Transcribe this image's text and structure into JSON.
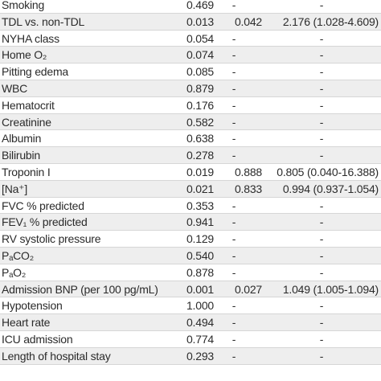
{
  "rows": [
    {
      "variable": "Smoking",
      "univariate_p": "0.469",
      "multivariate_p": "-",
      "or_ci": "-"
    },
    {
      "variable": "TDL vs. non-TDL",
      "univariate_p": "0.013",
      "multivariate_p": "0.042",
      "or_ci": "2.176 (1.028-4.609)"
    },
    {
      "variable": "NYHA class",
      "univariate_p": "0.054",
      "multivariate_p": "-",
      "or_ci": "-"
    },
    {
      "variable": "Home O₂",
      "univariate_p": "0.074",
      "multivariate_p": "-",
      "or_ci": "-"
    },
    {
      "variable": "Pitting edema",
      "univariate_p": "0.085",
      "multivariate_p": "-",
      "or_ci": "-"
    },
    {
      "variable": "WBC",
      "univariate_p": "0.879",
      "multivariate_p": "-",
      "or_ci": "-"
    },
    {
      "variable": "Hematocrit",
      "univariate_p": "0.176",
      "multivariate_p": "-",
      "or_ci": "-"
    },
    {
      "variable": "Creatinine",
      "univariate_p": "0.582",
      "multivariate_p": "-",
      "or_ci": "-"
    },
    {
      "variable": "Albumin",
      "univariate_p": "0.638",
      "multivariate_p": "-",
      "or_ci": "-"
    },
    {
      "variable": "Bilirubin",
      "univariate_p": "0.278",
      "multivariate_p": "-",
      "or_ci": "-"
    },
    {
      "variable": "Troponin I",
      "univariate_p": "0.019",
      "multivariate_p": "0.888",
      "or_ci": "0.805 (0.040-16.388)"
    },
    {
      "variable": "[Na⁺]",
      "univariate_p": "0.021",
      "multivariate_p": "0.833",
      "or_ci": "0.994 (0.937-1.054)"
    },
    {
      "variable": "FVC % predicted",
      "univariate_p": "0.353",
      "multivariate_p": "-",
      "or_ci": "-"
    },
    {
      "variable": "FEV₁ % predicted",
      "univariate_p": "0.941",
      "multivariate_p": "-",
      "or_ci": "-"
    },
    {
      "variable": "RV systolic pressure",
      "univariate_p": "0.129",
      "multivariate_p": "-",
      "or_ci": "-"
    },
    {
      "variable": "PₐCO₂",
      "univariate_p": "0.540",
      "multivariate_p": "-",
      "or_ci": "-"
    },
    {
      "variable": "PₐO₂",
      "univariate_p": "0.878",
      "multivariate_p": "-",
      "or_ci": "-"
    },
    {
      "variable": "Admission BNP (per 100 pg/mL)",
      "univariate_p": "0.001",
      "multivariate_p": "0.027",
      "or_ci": "1.049 (1.005-1.094)"
    },
    {
      "variable": "Hypotension",
      "univariate_p": "1.000",
      "multivariate_p": "-",
      "or_ci": "-"
    },
    {
      "variable": "Heart rate",
      "univariate_p": "0.494",
      "multivariate_p": "-",
      "or_ci": "-"
    },
    {
      "variable": "ICU admission",
      "univariate_p": "0.774",
      "multivariate_p": "-",
      "or_ci": "-"
    },
    {
      "variable": "Length of hospital stay",
      "univariate_p": "0.293",
      "multivariate_p": "-",
      "or_ci": "-"
    }
  ],
  "colors": {
    "row_shaded": "#eeeeee",
    "row_plain": "#ffffff",
    "text": "#2b2b2b",
    "divider": "#d6d6d6"
  }
}
